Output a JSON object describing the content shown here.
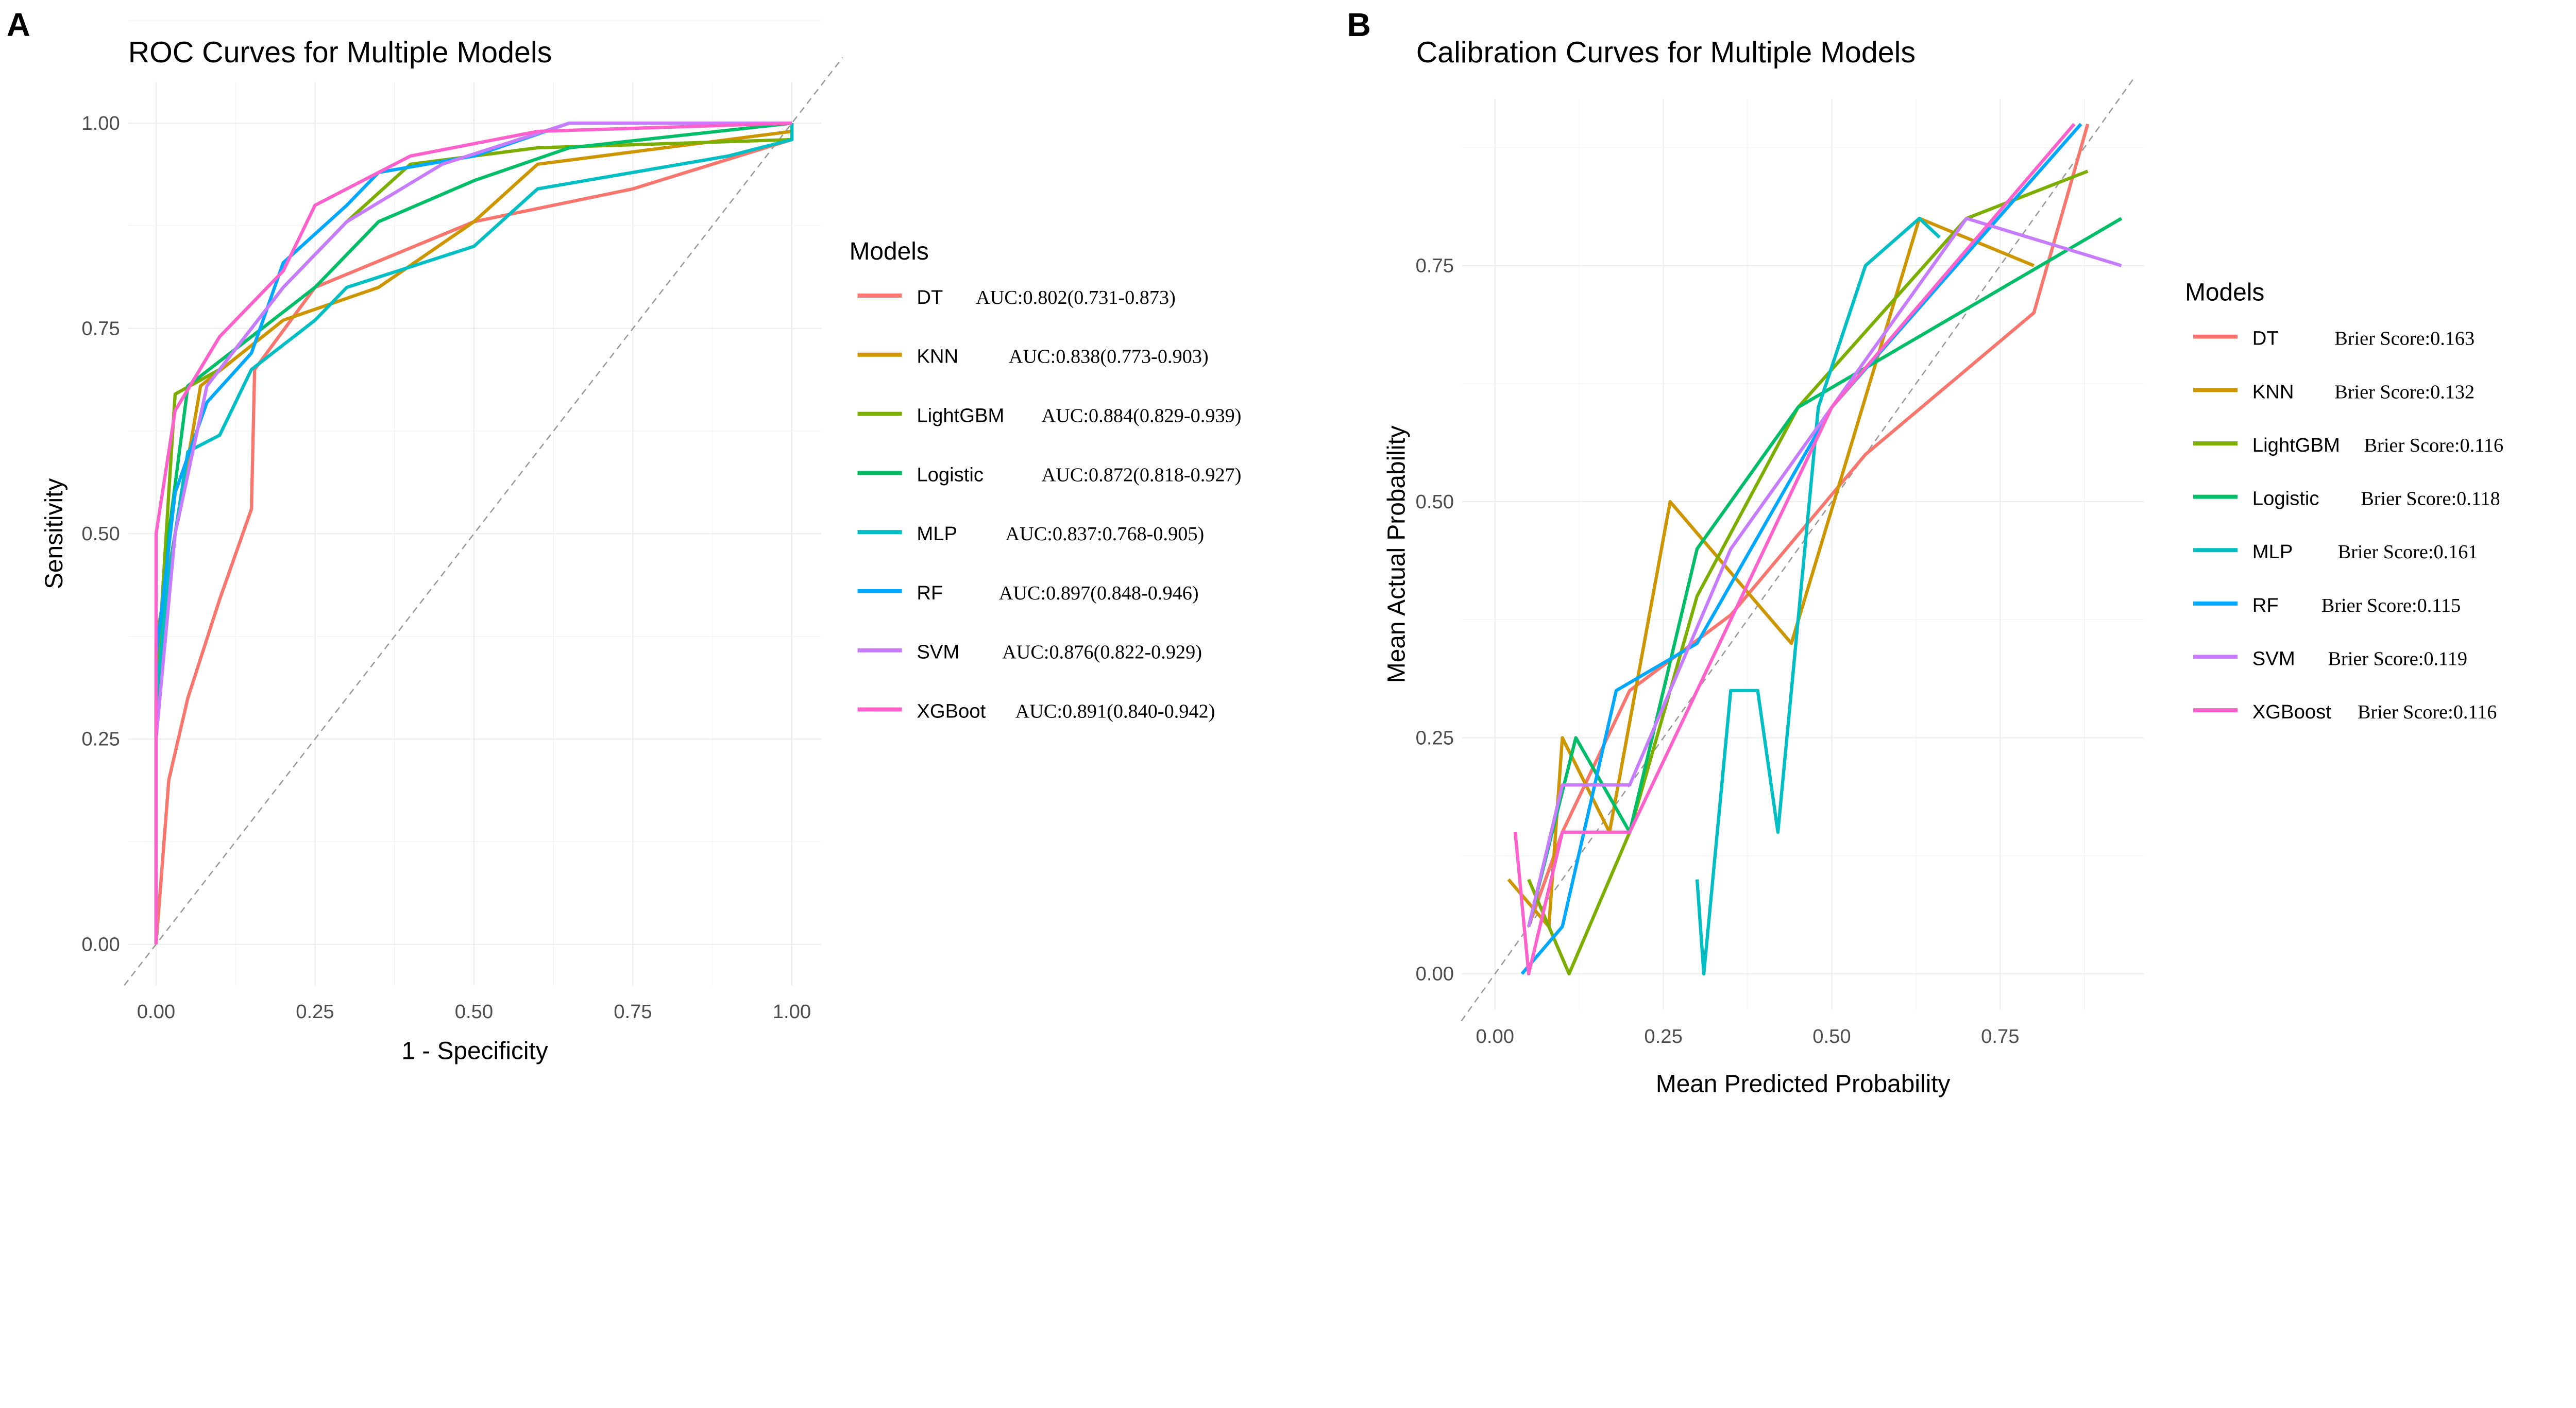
{
  "chart_data": [
    {
      "type": "line",
      "panel": "A",
      "title": "ROC Curves for Multiple Models",
      "xlabel": "1 - Specificity",
      "ylabel": "Sensitivity",
      "xlim": [
        0,
        1
      ],
      "ylim": [
        0,
        1
      ],
      "xticks": [
        "0.00",
        "0.25",
        "0.50",
        "0.75",
        "1.00"
      ],
      "yticks": [
        "0.00",
        "0.25",
        "0.50",
        "0.75",
        "1.00"
      ],
      "grid": true,
      "reference_line": "diagonal dashed",
      "legend_title": "Models",
      "legend_position": "right",
      "series": [
        {
          "name": "DT",
          "label": "AUC:0.802(0.731-0.873)",
          "color": "#F8766D",
          "points": [
            [
              0,
              0
            ],
            [
              0.02,
              0.2
            ],
            [
              0.05,
              0.3
            ],
            [
              0.1,
              0.42
            ],
            [
              0.15,
              0.53
            ],
            [
              0.155,
              0.7
            ],
            [
              0.25,
              0.8
            ],
            [
              0.5,
              0.88
            ],
            [
              0.75,
              0.92
            ],
            [
              1,
              0.98
            ],
            [
              1,
              1
            ]
          ]
        },
        {
          "name": "KNN",
          "label": "AUC:0.838(0.773-0.903)",
          "color": "#CD9600",
          "points": [
            [
              0,
              0
            ],
            [
              0,
              0.37
            ],
            [
              0.03,
              0.5
            ],
            [
              0.07,
              0.68
            ],
            [
              0.2,
              0.76
            ],
            [
              0.35,
              0.8
            ],
            [
              0.5,
              0.88
            ],
            [
              0.6,
              0.95
            ],
            [
              1,
              0.99
            ],
            [
              1,
              1
            ]
          ]
        },
        {
          "name": "LightGBM",
          "label": "AUC:0.884(0.829-0.939)",
          "color": "#7CAE00",
          "points": [
            [
              0,
              0
            ],
            [
              0,
              0.3
            ],
            [
              0.02,
              0.55
            ],
            [
              0.03,
              0.67
            ],
            [
              0.1,
              0.7
            ],
            [
              0.2,
              0.8
            ],
            [
              0.3,
              0.88
            ],
            [
              0.4,
              0.95
            ],
            [
              0.6,
              0.97
            ],
            [
              1,
              0.98
            ],
            [
              1,
              1
            ]
          ]
        },
        {
          "name": "Logistic",
          "label": "AUC:0.872(0.818-0.927)",
          "color": "#00BE67",
          "points": [
            [
              0,
              0
            ],
            [
              0,
              0.25
            ],
            [
              0.02,
              0.5
            ],
            [
              0.05,
              0.68
            ],
            [
              0.15,
              0.74
            ],
            [
              0.25,
              0.8
            ],
            [
              0.35,
              0.88
            ],
            [
              0.5,
              0.93
            ],
            [
              0.65,
              0.97
            ],
            [
              1,
              1
            ]
          ]
        },
        {
          "name": "MLP",
          "label": "AUC:0.837:0.768-0.905)",
          "color": "#00BFC4",
          "points": [
            [
              0,
              0
            ],
            [
              0,
              0.3
            ],
            [
              0.02,
              0.45
            ],
            [
              0.05,
              0.6
            ],
            [
              0.1,
              0.62
            ],
            [
              0.15,
              0.7
            ],
            [
              0.25,
              0.76
            ],
            [
              0.3,
              0.8
            ],
            [
              0.5,
              0.85
            ],
            [
              0.6,
              0.92
            ],
            [
              0.9,
              0.96
            ],
            [
              1,
              0.98
            ],
            [
              1,
              1
            ]
          ]
        },
        {
          "name": "RF",
          "label": "AUC:0.897(0.848-0.946)",
          "color": "#00A9FF",
          "points": [
            [
              0,
              0
            ],
            [
              0,
              0.35
            ],
            [
              0.03,
              0.55
            ],
            [
              0.08,
              0.66
            ],
            [
              0.15,
              0.72
            ],
            [
              0.2,
              0.83
            ],
            [
              0.3,
              0.9
            ],
            [
              0.35,
              0.94
            ],
            [
              0.5,
              0.96
            ],
            [
              0.65,
              1
            ],
            [
              1,
              1
            ]
          ]
        },
        {
          "name": "SVM",
          "label": "AUC:0.876(0.822-0.929)",
          "color": "#C77CFF",
          "points": [
            [
              0,
              0
            ],
            [
              0,
              0.25
            ],
            [
              0.03,
              0.5
            ],
            [
              0.08,
              0.68
            ],
            [
              0.2,
              0.8
            ],
            [
              0.3,
              0.88
            ],
            [
              0.45,
              0.95
            ],
            [
              0.65,
              1
            ],
            [
              1,
              1
            ]
          ]
        },
        {
          "name": "XGBoot",
          "label": "AUC:0.891(0.840-0.942)",
          "color": "#FF61CC",
          "points": [
            [
              0,
              0
            ],
            [
              0,
              0.5
            ],
            [
              0.03,
              0.65
            ],
            [
              0.1,
              0.74
            ],
            [
              0.2,
              0.82
            ],
            [
              0.25,
              0.9
            ],
            [
              0.4,
              0.96
            ],
            [
              0.6,
              0.99
            ],
            [
              1,
              1
            ]
          ]
        }
      ]
    },
    {
      "type": "line",
      "panel": "B",
      "title": "Calibration Curves for Multiple Models",
      "xlabel": "Mean Predicted Probability",
      "ylabel": "Mean Actual Probability",
      "xlim": [
        -0.05,
        0.95
      ],
      "ylim": [
        -0.04,
        0.9
      ],
      "xticks": [
        "0.00",
        "0.25",
        "0.50",
        "0.75"
      ],
      "yticks": [
        "0.00",
        "0.25",
        "0.50",
        "0.75"
      ],
      "grid": true,
      "reference_line": "diagonal dashed",
      "legend_title": "Models",
      "legend_position": "right",
      "series": [
        {
          "name": "DT",
          "label": "Brier Score:0.163",
          "color": "#F8766D",
          "points": [
            [
              0.05,
              0.05
            ],
            [
              0.1,
              0.15
            ],
            [
              0.2,
              0.3
            ],
            [
              0.35,
              0.38
            ],
            [
              0.55,
              0.55
            ],
            [
              0.8,
              0.7
            ],
            [
              0.88,
              0.9
            ]
          ]
        },
        {
          "name": "KNN",
          "label": "Brier Score:0.132",
          "color": "#CD9600",
          "points": [
            [
              0.02,
              0.1
            ],
            [
              0.08,
              0.05
            ],
            [
              0.1,
              0.25
            ],
            [
              0.17,
              0.15
            ],
            [
              0.26,
              0.5
            ],
            [
              0.44,
              0.35
            ],
            [
              0.63,
              0.8
            ],
            [
              0.8,
              0.75
            ]
          ]
        },
        {
          "name": "LightGBM",
          "label": "Brier Score:0.116",
          "color": "#7CAE00",
          "points": [
            [
              0.05,
              0.1
            ],
            [
              0.11,
              0
            ],
            [
              0.2,
              0.15
            ],
            [
              0.3,
              0.4
            ],
            [
              0.45,
              0.6
            ],
            [
              0.7,
              0.8
            ],
            [
              0.88,
              0.85
            ]
          ]
        },
        {
          "name": "Logistic",
          "label": "Brier Score:0.118",
          "color": "#00BE67",
          "points": [
            [
              0.05,
              0.05
            ],
            [
              0.12,
              0.25
            ],
            [
              0.2,
              0.15
            ],
            [
              0.3,
              0.45
            ],
            [
              0.45,
              0.6
            ],
            [
              0.93,
              0.8
            ]
          ]
        },
        {
          "name": "MLP",
          "label": "Brier Score:0.161",
          "color": "#00BFC4",
          "points": [
            [
              0.3,
              0.1
            ],
            [
              0.31,
              0
            ],
            [
              0.35,
              0.3
            ],
            [
              0.39,
              0.3
            ],
            [
              0.42,
              0.15
            ],
            [
              0.48,
              0.6
            ],
            [
              0.55,
              0.75
            ],
            [
              0.63,
              0.8
            ],
            [
              0.66,
              0.78
            ]
          ]
        },
        {
          "name": "RF",
          "label": "Brier Score:0.115",
          "color": "#00A9FF",
          "points": [
            [
              0.04,
              0
            ],
            [
              0.1,
              0.05
            ],
            [
              0.18,
              0.3
            ],
            [
              0.3,
              0.35
            ],
            [
              0.5,
              0.6
            ],
            [
              0.87,
              0.9
            ]
          ]
        },
        {
          "name": "SVM",
          "label": "Brier Score:0.119",
          "color": "#C77CFF",
          "points": [
            [
              0.05,
              0.05
            ],
            [
              0.1,
              0.2
            ],
            [
              0.2,
              0.2
            ],
            [
              0.35,
              0.45
            ],
            [
              0.7,
              0.8
            ],
            [
              0.93,
              0.75
            ]
          ]
        },
        {
          "name": "XGBoost",
          "label": "Brier Score:0.116",
          "color": "#FF61CC",
          "points": [
            [
              0.03,
              0.15
            ],
            [
              0.05,
              0
            ],
            [
              0.1,
              0.15
            ],
            [
              0.2,
              0.15
            ],
            [
              0.5,
              0.6
            ],
            [
              0.86,
              0.9
            ]
          ]
        }
      ]
    }
  ],
  "panels": {
    "a": "A",
    "b": "B"
  }
}
